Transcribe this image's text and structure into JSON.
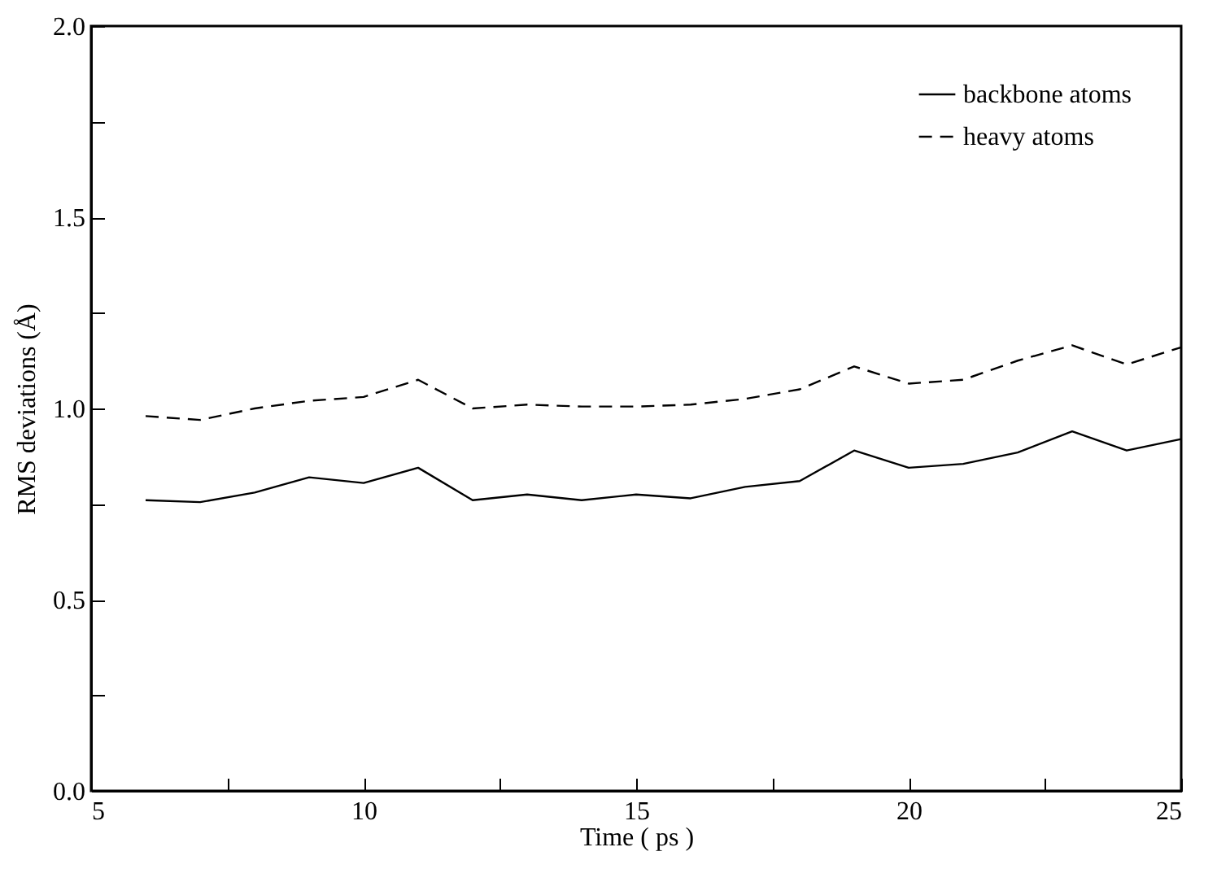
{
  "chart_data": {
    "type": "line",
    "xlabel": "Time ( ps )",
    "ylabel": "RMS deviations (Å)",
    "x": [
      6,
      7,
      8,
      9,
      10,
      11,
      12,
      13,
      14,
      15,
      16,
      17,
      18,
      19,
      20,
      21,
      22,
      23,
      24,
      25
    ],
    "series": [
      {
        "name": "backbone atoms",
        "color": "#000000",
        "line_style": "solid",
        "values": [
          0.76,
          0.755,
          0.78,
          0.82,
          0.805,
          0.845,
          0.76,
          0.775,
          0.76,
          0.775,
          0.765,
          0.795,
          0.81,
          0.89,
          0.845,
          0.855,
          0.885,
          0.94,
          0.89,
          0.92
        ]
      },
      {
        "name": "heavy atoms",
        "color": "#000000",
        "line_style": "dashed",
        "values": [
          0.98,
          0.97,
          1.0,
          1.02,
          1.03,
          1.075,
          1.0,
          1.01,
          1.005,
          1.005,
          1.01,
          1.025,
          1.05,
          1.11,
          1.065,
          1.075,
          1.125,
          1.165,
          1.115,
          1.16
        ]
      }
    ],
    "xlim": [
      5,
      25
    ],
    "xticks": [
      5,
      {
        "value": 7.5,
        "label": null
      },
      10,
      {
        "value": 12.5,
        "label": null
      },
      15,
      {
        "value": 17.5,
        "label": null
      },
      20,
      {
        "value": 22.5,
        "label": null
      },
      25
    ],
    "ylim": [
      0,
      2
    ],
    "yticks": [
      {
        "value": 0,
        "label": "0.0"
      },
      {
        "value": 0.25,
        "label": null
      },
      {
        "value": 0.5,
        "label": "0.5"
      },
      {
        "value": 0.75,
        "label": null
      },
      {
        "value": 1,
        "label": "1.0"
      },
      {
        "value": 1.25,
        "label": null
      },
      {
        "value": 1.5,
        "label": "1.5"
      },
      {
        "value": 1.75,
        "label": null
      },
      {
        "value": 2,
        "label": "2.0"
      }
    ],
    "grid": false,
    "legend": "top right",
    "marker": "none"
  }
}
